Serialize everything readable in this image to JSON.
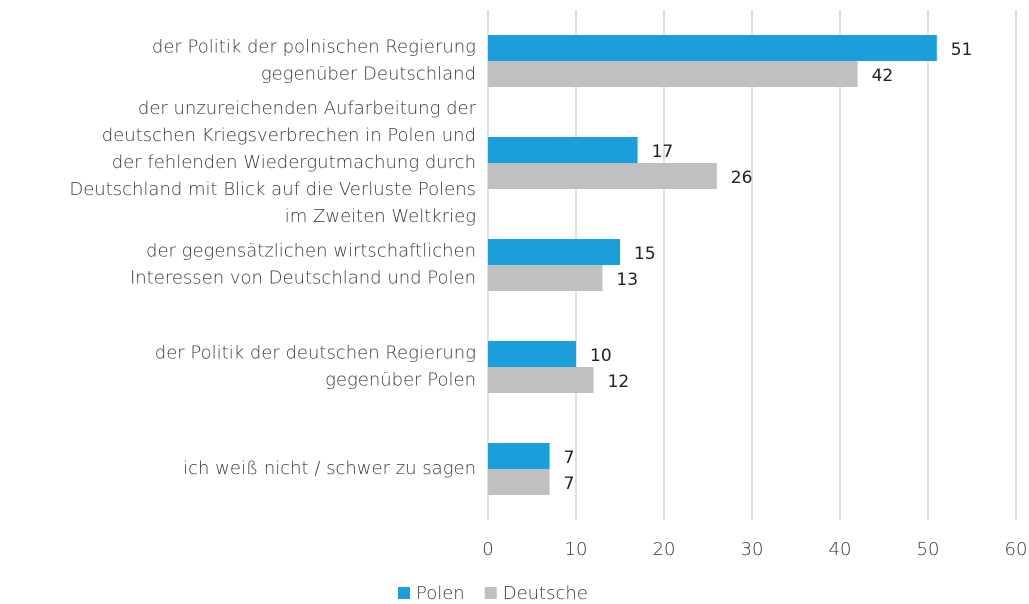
{
  "chart_data": {
    "type": "bar",
    "orientation": "horizontal",
    "categories": [
      [
        "der Politik der polnischen Regierung",
        "gegenüber Deutschland"
      ],
      [
        "der unzureichenden Aufarbeitung der",
        "deutschen Kriegsverbrechen in Polen und",
        "der fehlenden Wiedergutmachung durch",
        "Deutschland mit Blick auf die Verluste Polens",
        "im Zweiten Weltkrieg"
      ],
      [
        "der gegensätzlichen wirtschaftlichen",
        "Interessen von Deutschland und Polen"
      ],
      [
        "der Politik der deutschen Regierung",
        "gegenüber Polen"
      ],
      [
        "ich weiß nicht / schwer zu sagen"
      ]
    ],
    "series": [
      {
        "name": "Polen",
        "color": "#1a9fdb",
        "values": [
          51,
          17,
          15,
          10,
          7
        ]
      },
      {
        "name": "Deutsche",
        "color": "#c0c0c0",
        "values": [
          42,
          26,
          13,
          12,
          7
        ]
      }
    ],
    "xlim": [
      0,
      60
    ],
    "xticks": [
      0,
      10,
      20,
      30,
      40,
      50,
      60
    ],
    "grid": true,
    "legend": "bottom"
  }
}
